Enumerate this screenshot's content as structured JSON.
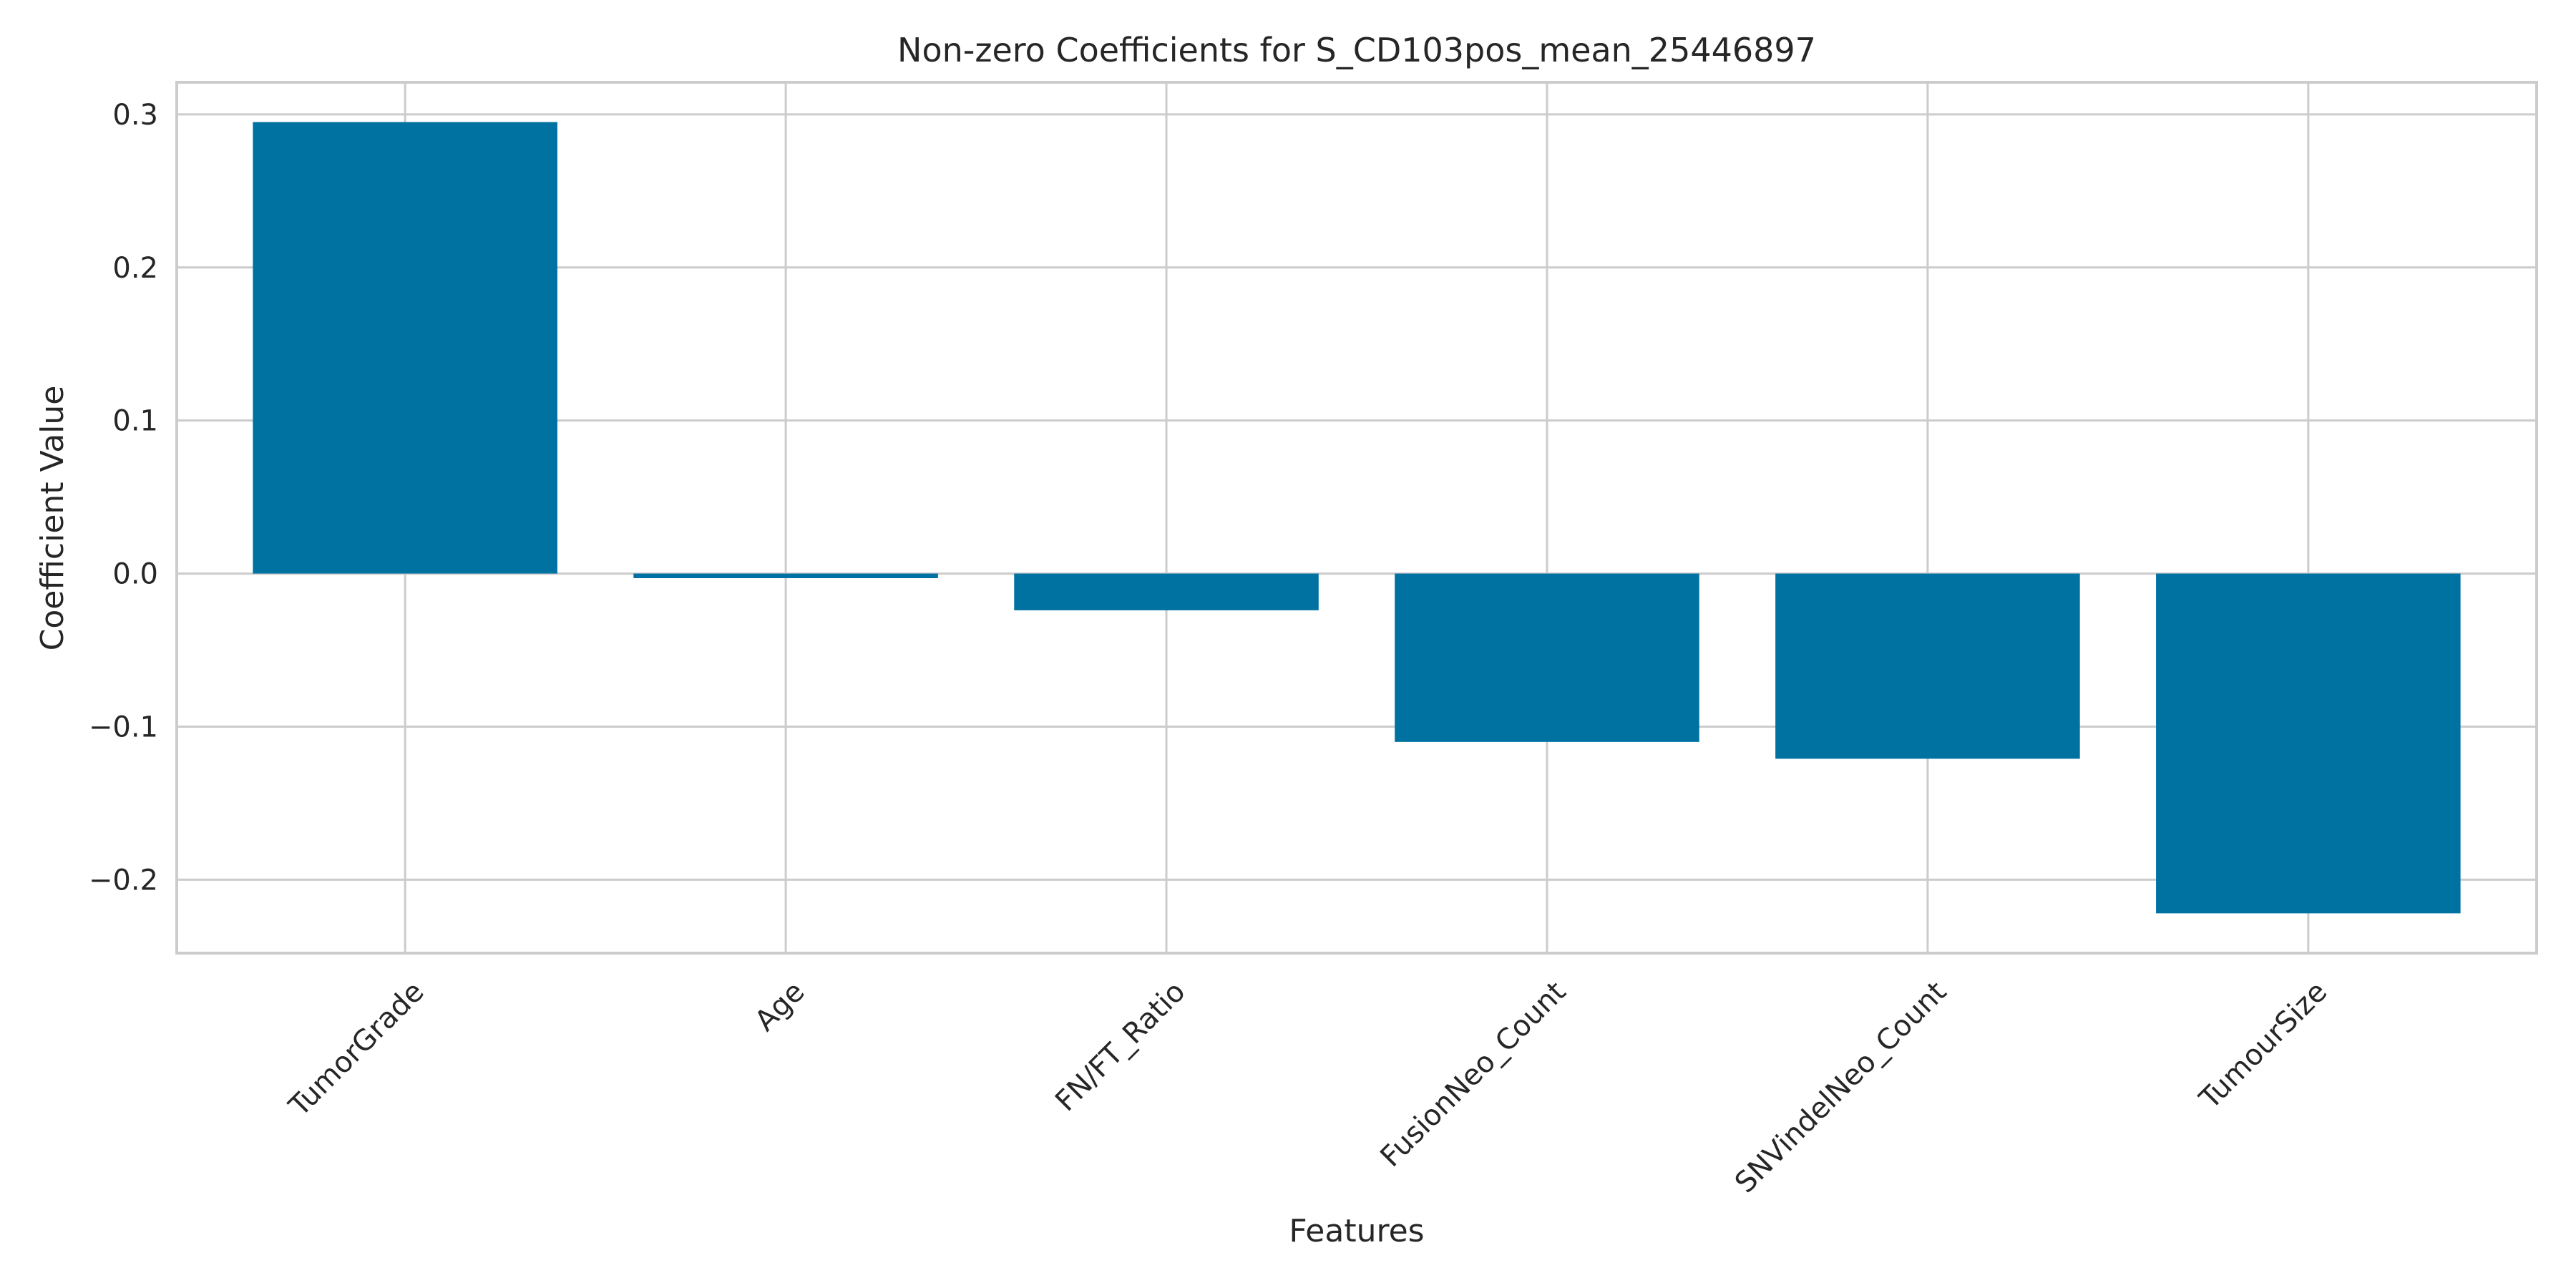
{
  "chart_data": {
    "type": "bar",
    "title": "Non-zero Coefficients for S_CD103pos_mean_25446897",
    "xlabel": "Features",
    "ylabel": "Coefficient Value",
    "categories": [
      "TumorGrade",
      "Age",
      "FN/FT_Ratio",
      "FusionNeo_Count",
      "SNVindelNeo_Count",
      "TumourSize"
    ],
    "values": [
      0.295,
      -0.003,
      -0.024,
      -0.11,
      -0.121,
      -0.222
    ],
    "ylim": [
      -0.248,
      0.321
    ],
    "yticks": [
      0.3,
      0.2,
      0.1,
      0.0,
      -0.1,
      -0.2
    ],
    "ytick_labels": [
      "0.3",
      "0.2",
      "0.1",
      "0.0",
      "−0.1",
      "−0.2"
    ],
    "grid": true,
    "legend": "none",
    "colors": {
      "bar": "#0072A2",
      "grid": "#CCCCCC",
      "spine": "#CCCCCC",
      "text": "#262626"
    }
  }
}
